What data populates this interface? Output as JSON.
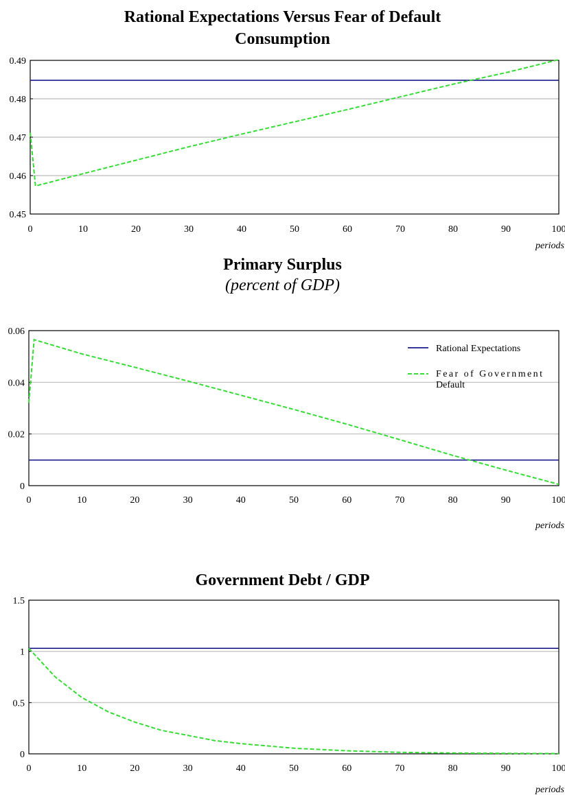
{
  "page": {
    "main_title": "Rational Expectations Versus Fear of Default",
    "colors": {
      "rational": "#1a1a8c",
      "fear": "#33dd33",
      "grid": "#bbbbbb",
      "frame": "#000000"
    }
  },
  "chart_data": [
    {
      "type": "line",
      "title": "Consumption",
      "subtitle": "",
      "xlabel": "periods",
      "ylabel": "",
      "xlim": [
        0,
        100
      ],
      "ylim": [
        0.45,
        0.49
      ],
      "xticks": [
        "0",
        "10",
        "20",
        "30",
        "40",
        "50",
        "60",
        "70",
        "80",
        "90",
        "100"
      ],
      "yticks": [
        "0.45",
        "0.46",
        "0.47",
        "0.48",
        "0.49"
      ],
      "grid": true,
      "legend": null,
      "series": [
        {
          "name": "Rational Expectations",
          "style": "solid",
          "x": [
            0,
            100
          ],
          "y": [
            0.4848,
            0.4848
          ]
        },
        {
          "name": "Fear of Government Default",
          "style": "dashed",
          "x": [
            0,
            1,
            10,
            20,
            30,
            40,
            50,
            60,
            70,
            80,
            90,
            100
          ],
          "y": [
            0.4712,
            0.4573,
            0.4605,
            0.464,
            0.4675,
            0.4708,
            0.474,
            0.4772,
            0.4805,
            0.4838,
            0.4868,
            0.4902
          ]
        }
      ]
    },
    {
      "type": "line",
      "title": "Primary Surplus",
      "subtitle": "(percent of GDP)",
      "xlabel": "periods",
      "ylabel": "",
      "xlim": [
        0,
        100
      ],
      "ylim": [
        0,
        0.06
      ],
      "xticks": [
        "0",
        "10",
        "20",
        "30",
        "40",
        "50",
        "60",
        "70",
        "80",
        "90",
        "100"
      ],
      "yticks": [
        "0",
        "0.02",
        "0.04",
        "0.06"
      ],
      "grid": true,
      "legend": "top-right",
      "series": [
        {
          "name": "Rational Expectations",
          "style": "solid",
          "x": [
            0,
            100
          ],
          "y": [
            0.0099,
            0.0099
          ]
        },
        {
          "name": "Fear of Government Default",
          "style": "dashed",
          "x": [
            0,
            1,
            10,
            20,
            30,
            40,
            50,
            60,
            70,
            80,
            90,
            100
          ],
          "y": [
            0.032,
            0.0565,
            0.051,
            0.0458,
            0.0405,
            0.035,
            0.0295,
            0.0238,
            0.0178,
            0.0117,
            0.006,
            0.0005
          ]
        }
      ]
    },
    {
      "type": "line",
      "title": "Government Debt / GDP",
      "subtitle": "",
      "xlabel": "periods",
      "ylabel": "",
      "xlim": [
        0,
        100
      ],
      "ylim": [
        0,
        1.5
      ],
      "xticks": [
        "0",
        "10",
        "20",
        "30",
        "40",
        "50",
        "60",
        "70",
        "80",
        "90",
        "100"
      ],
      "yticks": [
        "0",
        "0.5",
        "1",
        "1.5"
      ],
      "grid": true,
      "legend": null,
      "series": [
        {
          "name": "Rational Expectations",
          "style": "solid",
          "x": [
            0,
            100
          ],
          "y": [
            1.03,
            1.03
          ]
        },
        {
          "name": "Fear of Government Default",
          "style": "dashed",
          "x": [
            0,
            5,
            10,
            15,
            20,
            25,
            30,
            35,
            40,
            50,
            60,
            70,
            80,
            90,
            100
          ],
          "y": [
            1.03,
            0.75,
            0.55,
            0.41,
            0.31,
            0.23,
            0.18,
            0.13,
            0.1,
            0.055,
            0.03,
            0.015,
            0.008,
            0.005,
            0.003
          ]
        }
      ]
    }
  ],
  "legend_entries": [
    "Rational Expectations",
    "Fear of Government Default"
  ]
}
